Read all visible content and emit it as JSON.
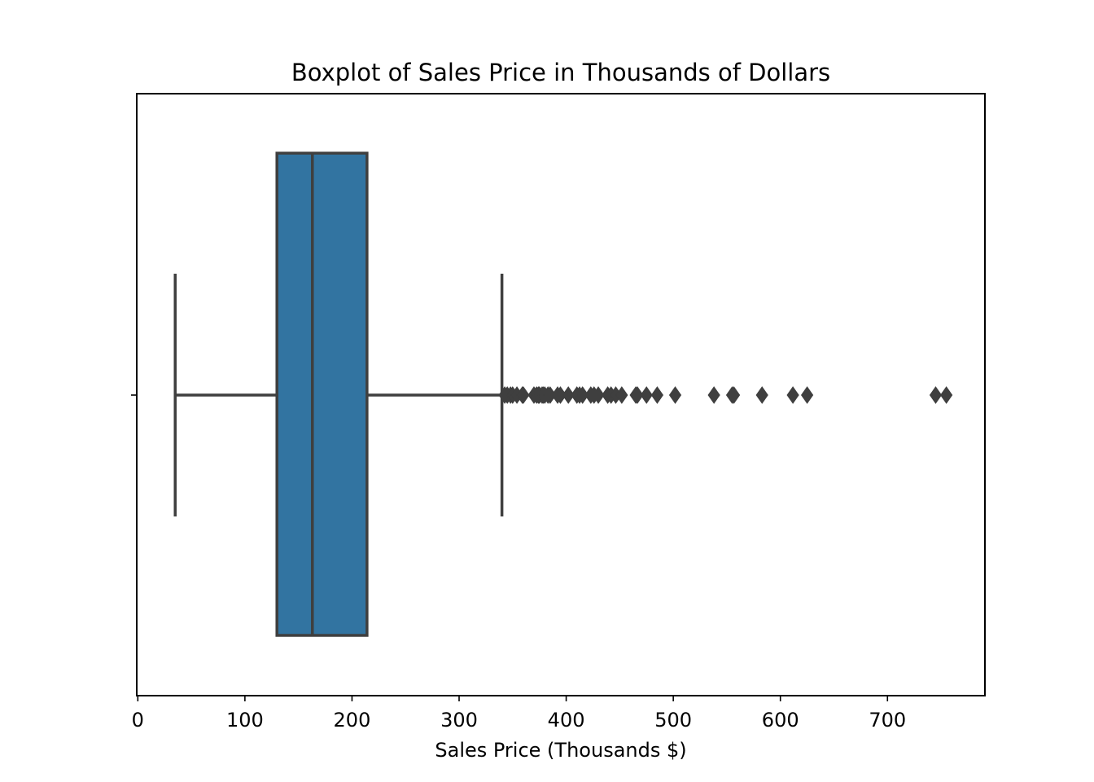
{
  "chart_data": {
    "type": "boxplot",
    "title": "Boxplot of Sales Price in Thousands of Dollars",
    "xlabel": "Sales Price (Thousands $)",
    "ylabel": "",
    "orientation": "horizontal",
    "xlim": [
      -1,
      791
    ],
    "xticks": [
      0,
      100,
      200,
      300,
      400,
      500,
      600,
      700
    ],
    "grid": false,
    "legend": false,
    "box": {
      "whisker_low": 34.9,
      "q1": 129.9,
      "median": 163.0,
      "q3": 214.0,
      "whisker_high": 340.0,
      "color": "#3274a1",
      "edge_color": "#3f3f3f"
    },
    "outliers": [
      342.6,
      345.0,
      348.0,
      350.0,
      354.0,
      359.1,
      360.0,
      369.9,
      372.4,
      374.0,
      375.0,
      377.5,
      378.5,
      380.0,
      383.0,
      385.0,
      392.0,
      394.6,
      402.0,
      410.0,
      412.5,
      415.3,
      423.0,
      426.0,
      430.0,
      438.8,
      441.9,
      446.3,
      451.9,
      465.0,
      466.5,
      475.0,
      485.0,
      501.8,
      538.0,
      555.0,
      556.6,
      582.9,
      611.7,
      625.0,
      745.0,
      755.0
    ]
  }
}
